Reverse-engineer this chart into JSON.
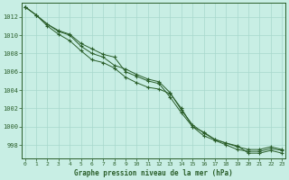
{
  "title": "Graphe pression niveau de la mer (hPa)",
  "ylim": [
    996.5,
    1013.5
  ],
  "xlim": [
    -0.3,
    23.3
  ],
  "yticks": [
    998,
    1000,
    1002,
    1004,
    1006,
    1008,
    1010,
    1012
  ],
  "xticks": [
    0,
    1,
    2,
    3,
    4,
    5,
    6,
    7,
    8,
    9,
    10,
    11,
    12,
    13,
    14,
    15,
    16,
    17,
    18,
    19,
    20,
    21,
    22,
    23
  ],
  "xlabel_ticks": [
    "0",
    "1",
    "2",
    "3",
    "4",
    "5",
    "6",
    "7",
    "8",
    "9",
    "10",
    "11",
    "12",
    "13",
    "14",
    "15",
    "16",
    "17",
    "18",
    "19",
    "20",
    "21",
    "22",
    "23"
  ],
  "background_color": "#c8eee4",
  "grid_color": "#a8d8cc",
  "line_color": "#2a5e2a",
  "line1": [
    1013.1,
    1012.2,
    1011.2,
    1010.5,
    1010.1,
    1009.1,
    1008.5,
    1007.9,
    1007.6,
    1006.0,
    1005.5,
    1005.0,
    1004.7,
    1003.2,
    1001.5,
    1000.0,
    999.0,
    998.5,
    998.0,
    997.5,
    997.3,
    997.3,
    997.6,
    997.4
  ],
  "line2": [
    1013.1,
    1012.2,
    1011.2,
    1010.4,
    1010.0,
    1008.8,
    1008.0,
    1007.6,
    1006.7,
    1006.3,
    1005.7,
    1005.2,
    1004.9,
    1003.7,
    1001.8,
    1000.2,
    999.3,
    998.6,
    998.2,
    997.8,
    997.5,
    997.5,
    997.8,
    997.5
  ],
  "line3": [
    1013.1,
    1012.2,
    1011.0,
    1010.1,
    1009.4,
    1008.3,
    1007.3,
    1007.0,
    1006.4,
    1005.4,
    1004.8,
    1004.3,
    1004.1,
    1003.6,
    1002.0,
    1000.0,
    999.4,
    998.6,
    998.2,
    997.9,
    997.1,
    997.1,
    997.4,
    997.1
  ]
}
